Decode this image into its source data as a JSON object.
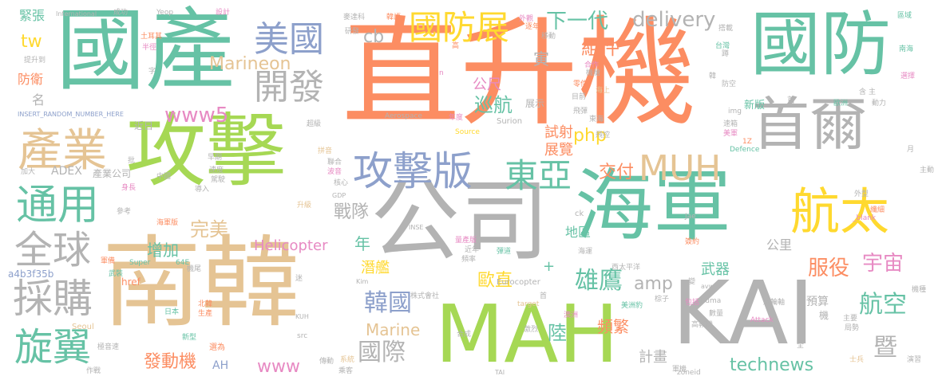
{
  "palette": {
    "orange": "#fc8d62",
    "green": "#66c2a5",
    "lime": "#a6d854",
    "gray": "#b3b3b3",
    "tan": "#e5c494",
    "blue": "#8da0cb",
    "yellow": "#ffd92f",
    "pink": "#e78ac3"
  },
  "words": [
    {
      "text": "直升機",
      "color": "orange"
    },
    {
      "text": "國產",
      "color": "green"
    },
    {
      "text": "國防",
      "color": "green"
    },
    {
      "text": "攻擊",
      "color": "lime"
    },
    {
      "text": "南韓",
      "color": "tan"
    },
    {
      "text": "公司",
      "color": "gray"
    },
    {
      "text": "海軍",
      "color": "green"
    },
    {
      "text": "MAH",
      "color": "lime"
    },
    {
      "text": "KAI",
      "color": "gray"
    },
    {
      "text": "首爾",
      "color": "gray"
    },
    {
      "text": "航太",
      "color": "yellow"
    },
    {
      "text": "攻擊版",
      "color": "blue"
    },
    {
      "text": "產業",
      "color": "tan"
    },
    {
      "text": "通用",
      "color": "green"
    },
    {
      "text": "美國",
      "color": "blue"
    },
    {
      "text": "開發",
      "color": "gray"
    },
    {
      "text": "全球",
      "color": "gray"
    },
    {
      "text": "採購",
      "color": "gray"
    },
    {
      "text": "旋翼",
      "color": "green"
    },
    {
      "text": "國防展",
      "color": "yellow"
    },
    {
      "text": "東亞",
      "color": "green"
    },
    {
      "text": "MUH",
      "color": "tan"
    },
    {
      "text": "delivery",
      "color": "gray"
    },
    {
      "text": "下一代",
      "color": "green"
    },
    {
      "text": "組件",
      "color": "orange"
    },
    {
      "text": "www5",
      "color": "pink"
    },
    {
      "text": "Marineon",
      "color": "tan"
    },
    {
      "text": "cb",
      "color": "gray"
    },
    {
      "text": "tw",
      "color": "yellow"
    },
    {
      "text": "公尺",
      "color": "pink"
    },
    {
      "text": "巡航",
      "color": "green"
    },
    {
      "text": "寅",
      "color": "gray"
    },
    {
      "text": "php",
      "color": "yellow"
    },
    {
      "text": "試射",
      "color": "orange"
    },
    {
      "text": "展覽",
      "color": "orange"
    },
    {
      "text": "交付",
      "color": "orange"
    },
    {
      "text": "戰隊",
      "color": "gray"
    },
    {
      "text": "完美",
      "color": "tan"
    },
    {
      "text": "增加",
      "color": "green"
    },
    {
      "text": "Helicopter",
      "color": "pink"
    },
    {
      "text": "年",
      "color": "green"
    },
    {
      "text": "韓國",
      "color": "blue"
    },
    {
      "text": "潛艦",
      "color": "yellow"
    },
    {
      "text": "雄鷹",
      "color": "green"
    },
    {
      "text": "amp",
      "color": "gray"
    },
    {
      "text": "服役",
      "color": "orange"
    },
    {
      "text": "宇宙",
      "color": "pink"
    },
    {
      "text": "航空",
      "color": "green"
    },
    {
      "text": "暨",
      "color": "gray"
    },
    {
      "text": "公里",
      "color": "gray"
    },
    {
      "text": "武器",
      "color": "green"
    },
    {
      "text": "陸",
      "color": "green"
    },
    {
      "text": "國際",
      "color": "gray"
    },
    {
      "text": "歐直",
      "color": "yellow"
    },
    {
      "text": "Marine",
      "color": "tan"
    },
    {
      "text": "頻繁",
      "color": "orange"
    },
    {
      "text": "technews",
      "color": "green"
    },
    {
      "text": "www",
      "color": "pink"
    },
    {
      "text": "發動機",
      "color": "orange"
    },
    {
      "text": "AH",
      "color": "blue"
    },
    {
      "text": "計畫",
      "color": "gray"
    },
    {
      "text": "地區",
      "color": "green"
    },
    {
      "text": "預算",
      "color": "gray"
    },
    {
      "text": "a4b3f35b",
      "color": "blue"
    },
    {
      "text": "防衛",
      "color": "orange"
    },
    {
      "text": "名",
      "color": "gray"
    },
    {
      "text": "緊張",
      "color": "green"
    },
    {
      "text": "新版",
      "color": "green"
    },
    {
      "text": "ADEX",
      "color": "gray"
    },
    {
      "text": "產業公司",
      "color": "gray"
    },
    {
      "text": "近日",
      "color": "gray"
    },
    {
      "text": "展示",
      "color": "gray"
    },
    {
      "text": "Surion",
      "color": "gray"
    },
    {
      "text": "Eurocopter",
      "color": "gray"
    },
    {
      "text": "Defence",
      "color": "green"
    },
    {
      "text": "Seoul",
      "color": "tan"
    },
    {
      "text": "Super",
      "color": "green"
    },
    {
      "text": "Puma",
      "color": "gray"
    },
    {
      "text": "Attack",
      "color": "pink"
    },
    {
      "text": "International",
      "color": "gray"
    },
    {
      "text": "Yeop",
      "color": "gray"
    },
    {
      "text": "INSERT_RANDOM_NUMBER_HERE",
      "color": "blue"
    },
    {
      "text": "Aerospace",
      "color": "gray"
    },
    {
      "text": "Source",
      "color": "yellow"
    },
    {
      "text": "zoneid",
      "color": "gray"
    },
    {
      "text": "target",
      "color": "tan"
    },
    {
      "text": "_blank",
      "color": "pink"
    },
    {
      "text": "href",
      "color": "orange"
    },
    {
      "text": "src",
      "color": "gray"
    },
    {
      "text": "GDP",
      "color": "gray"
    },
    {
      "text": "64E",
      "color": "green"
    },
    {
      "text": "KUH",
      "color": "gray"
    },
    {
      "text": "INSE",
      "color": "gray"
    },
    {
      "text": "TAI",
      "color": "gray"
    },
    {
      "text": "Kim",
      "color": "gray"
    },
    {
      "text": "Jae",
      "color": "gray"
    },
    {
      "text": "ck",
      "color": "gray"
    },
    {
      "text": "avw",
      "color": "gray"
    },
    {
      "text": "img",
      "color": "gray"
    },
    {
      "text": "1Z",
      "color": "orange"
    },
    {
      "text": "n",
      "color": "pink"
    },
    {
      "text": "成功",
      "color": "gray"
    },
    {
      "text": "設計",
      "color": "pink"
    },
    {
      "text": "麥達科",
      "color": "gray"
    },
    {
      "text": "韓語",
      "color": "orange"
    },
    {
      "text": "區域",
      "color": "green"
    },
    {
      "text": "南海",
      "color": "green"
    },
    {
      "text": "歐洲",
      "color": "green"
    },
    {
      "text": "動力",
      "color": "gray"
    },
    {
      "text": "選擇",
      "color": "pink"
    },
    {
      "text": "月",
      "color": "gray"
    },
    {
      "text": "海運",
      "color": "gray"
    },
    {
      "text": "西太平洋",
      "color": "gray"
    },
    {
      "text": "美洲豹",
      "color": "green"
    },
    {
      "text": "澳洲",
      "color": "pink"
    },
    {
      "text": "激烈",
      "color": "gray"
    },
    {
      "text": "合成",
      "color": "gray"
    },
    {
      "text": "株式會社",
      "color": "gray"
    },
    {
      "text": "新型",
      "color": "green"
    },
    {
      "text": "日本",
      "color": "green"
    },
    {
      "text": "選為",
      "color": "orange"
    },
    {
      "text": "北韓",
      "color": "orange"
    },
    {
      "text": "生產",
      "color": "orange"
    },
    {
      "text": "機尾",
      "color": "gray"
    },
    {
      "text": "武裝",
      "color": "green"
    },
    {
      "text": "軍備",
      "color": "orange"
    },
    {
      "text": "參考",
      "color": "gray"
    },
    {
      "text": "加大",
      "color": "gray"
    },
    {
      "text": "身長",
      "color": "pink"
    },
    {
      "text": "中國",
      "color": "gray"
    },
    {
      "text": "導入",
      "color": "gray"
    },
    {
      "text": "升級",
      "color": "tan"
    },
    {
      "text": "聯合",
      "color": "gray"
    },
    {
      "text": "速度",
      "color": "gray"
    },
    {
      "text": "量產版",
      "color": "pink"
    },
    {
      "text": "近年",
      "color": "gray"
    },
    {
      "text": "頻率",
      "color": "gray"
    },
    {
      "text": "彈道",
      "color": "green"
    },
    {
      "text": "數量",
      "color": "gray"
    },
    {
      "text": "高教機",
      "color": "gray"
    },
    {
      "text": "過輪軸",
      "color": "gray"
    },
    {
      "text": "機種",
      "color": "gray"
    },
    {
      "text": "主要",
      "color": "gray"
    },
    {
      "text": "局勢",
      "color": "gray"
    },
    {
      "text": "包括",
      "color": "pink"
    },
    {
      "text": "簽約",
      "color": "orange"
    },
    {
      "text": "外型",
      "color": "gray"
    },
    {
      "text": "纖細",
      "color": "orange"
    },
    {
      "text": "演習",
      "color": "gray"
    },
    {
      "text": "士兵",
      "color": "tan"
    },
    {
      "text": "軍機",
      "color": "gray"
    },
    {
      "text": "全",
      "color": "gray"
    },
    {
      "text": "傳動",
      "color": "gray"
    },
    {
      "text": "系統",
      "color": "tan"
    },
    {
      "text": "作戰",
      "color": "gray"
    },
    {
      "text": "極音速",
      "color": "gray"
    },
    {
      "text": "乘客",
      "color": "gray"
    },
    {
      "text": "飛彈",
      "color": "gray"
    },
    {
      "text": "東海",
      "color": "gray"
    },
    {
      "text": "台灣",
      "color": "green"
    },
    {
      "text": "合作",
      "color": "pink"
    },
    {
      "text": "機艙",
      "color": "gray"
    },
    {
      "text": "搭載",
      "color": "gray"
    },
    {
      "text": "海上",
      "color": "tan"
    },
    {
      "text": "研發",
      "color": "gray"
    },
    {
      "text": "年度",
      "color": "pink"
    },
    {
      "text": "目前",
      "color": "gray"
    },
    {
      "text": "防空",
      "color": "gray"
    },
    {
      "text": "提升到",
      "color": "gray"
    },
    {
      "text": "土耳其",
      "color": "orange"
    },
    {
      "text": "半徑",
      "color": "pink"
    },
    {
      "text": "早期",
      "color": "gray"
    },
    {
      "text": "核心",
      "color": "gray"
    },
    {
      "text": "拼音",
      "color": "tan"
    },
    {
      "text": "波音",
      "color": "pink"
    },
    {
      "text": "駕駛",
      "color": "gray"
    },
    {
      "text": "主",
      "color": "gray"
    },
    {
      "text": "零件",
      "color": "orange"
    },
    {
      "text": "海軍版",
      "color": "orange"
    },
    {
      "text": "超級",
      "color": "gray"
    },
    {
      "text": "移動",
      "color": "gray"
    },
    {
      "text": "批",
      "color": "gray"
    },
    {
      "text": "迷",
      "color": "gray"
    },
    {
      "text": "字",
      "color": "gray"
    },
    {
      "text": "首",
      "color": "gray"
    },
    {
      "text": "棕子",
      "color": "gray"
    },
    {
      "text": "飛控",
      "color": "gray"
    },
    {
      "text": "速箱",
      "color": "gray"
    },
    {
      "text": "美軍",
      "color": "pink"
    },
    {
      "text": "外觀",
      "color": "pink"
    },
    {
      "text": "逐年",
      "color": "orange"
    },
    {
      "text": "高",
      "color": "orange"
    },
    {
      "text": "韓",
      "color": "gray"
    },
    {
      "text": "主動",
      "color": "gray"
    },
    {
      "text": "蹲",
      "color": "gray"
    },
    {
      "text": "變",
      "color": "gray"
    },
    {
      "text": "含",
      "color": "gray"
    },
    {
      "text": "機",
      "color": "gray"
    },
    {
      "text": "首",
      "color": "gray"
    },
    {
      "text": "+",
      "color": "green"
    },
    {
      "text": "a",
      "color": "gray"
    },
    {
      "text": "T",
      "color": "gray"
    }
  ]
}
